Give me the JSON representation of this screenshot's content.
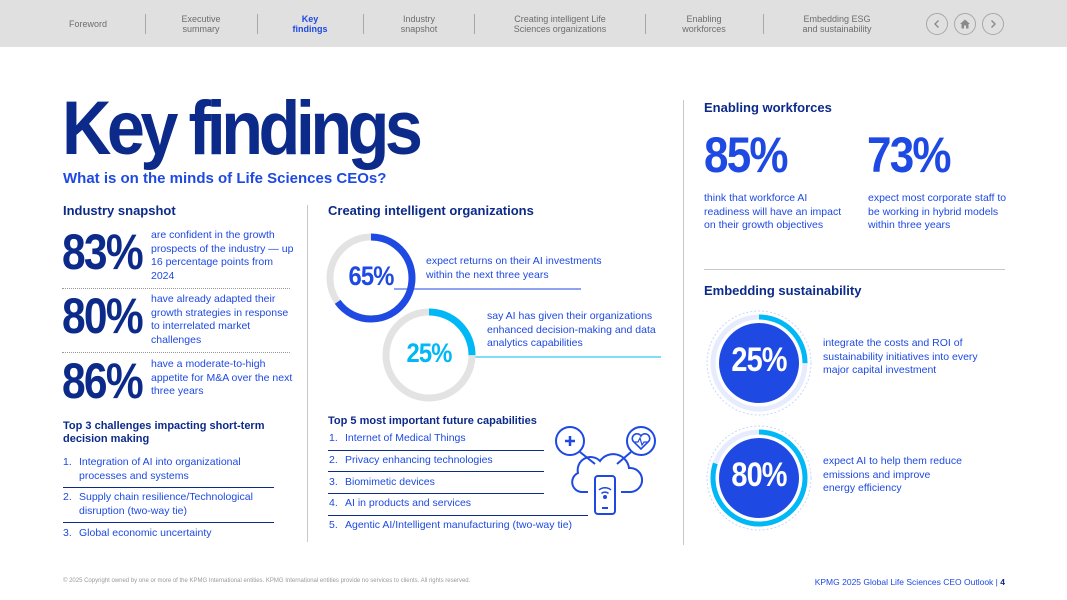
{
  "nav": {
    "items": [
      {
        "label": "Foreword"
      },
      {
        "label": "Executive\nsummary"
      },
      {
        "label": "Key\nfindings"
      },
      {
        "label": "Industry\nsnapshot"
      },
      {
        "label": "Creating intelligent Life\nSciences organizations"
      },
      {
        "label": "Enabling\nworkforces"
      },
      {
        "label": "Embedding ESG\nand sustainability"
      }
    ],
    "active_index": 2,
    "buttons": [
      "chevron-left-icon",
      "home-icon",
      "chevron-right-icon"
    ]
  },
  "page": {
    "title": "Key findings",
    "subtitle": "What is on the minds of Life Sciences CEOs?"
  },
  "industry": {
    "heading": "Industry snapshot",
    "stats": [
      {
        "value": "83%",
        "text": "are confident in the growth prospects of the industry — up 16 percentage points from 2024"
      },
      {
        "value": "80%",
        "text": "have already adapted their growth strategies in response to interrelated market challenges"
      },
      {
        "value": "86%",
        "text": "have a moderate-to-high appetite for M&A over the next three years"
      }
    ],
    "challenges_heading": "Top 3 challenges impacting short-term decision making",
    "challenges": [
      {
        "n": "1.",
        "text": "Integration of AI into organizational processes and systems"
      },
      {
        "n": "2.",
        "text": "Supply chain resilience/Technological disruption (two-way tie)"
      },
      {
        "n": "3.",
        "text": "Global economic uncertainty"
      }
    ]
  },
  "orgs": {
    "heading": "Creating intelligent organizations",
    "rings": [
      {
        "value": "65%",
        "fraction": 0.65,
        "color": "#1e49e2",
        "text": "expect returns on their AI investments within the next three years"
      },
      {
        "value": "25%",
        "fraction": 0.25,
        "color": "#00b8f5",
        "text": "say AI has given their organizations enhanced decision-making and data analytics capabilities"
      }
    ],
    "capabilities_heading": "Top 5 most important future capabilities",
    "capabilities": [
      {
        "n": "1.",
        "text": "Internet of Medical Things"
      },
      {
        "n": "2.",
        "text": "Privacy enhancing technologies"
      },
      {
        "n": "3.",
        "text": "Biomimetic devices"
      },
      {
        "n": "4.",
        "text": "AI in products and services"
      },
      {
        "n": "5.",
        "text": "Agentic AI/Intelligent manufacturing (two-way tie)"
      }
    ],
    "illustration": "cloud-health-devices-icon"
  },
  "workforces": {
    "heading": "Enabling workforces",
    "stats": [
      {
        "value": "85%",
        "text": "think that workforce AI readiness will have an impact on their growth objectives"
      },
      {
        "value": "73%",
        "text": "expect most corporate staff to be working in hybrid models within three years"
      }
    ]
  },
  "sustainability": {
    "heading": "Embedding sustainability",
    "stats": [
      {
        "value": "25%",
        "fraction": 0.25,
        "text": "integrate the costs and ROI of sustainability initiatives into every major capital investment"
      },
      {
        "value": "80%",
        "fraction": 0.8,
        "text": "expect AI to help them reduce emissions and improve energy efficiency"
      }
    ]
  },
  "footer": {
    "copyright": "© 2025 Copyright owned by one or more of the KPMG International entities. KPMG International entities provide no services to clients. All rights reserved.",
    "report": "KPMG 2025 Global Life Sciences CEO Outlook |",
    "page_number": "4"
  },
  "colors": {
    "navy": "#0c2a8a",
    "blue": "#1e49e2",
    "cyan": "#00b8f5",
    "grey_ring": "#e3e3e3"
  }
}
